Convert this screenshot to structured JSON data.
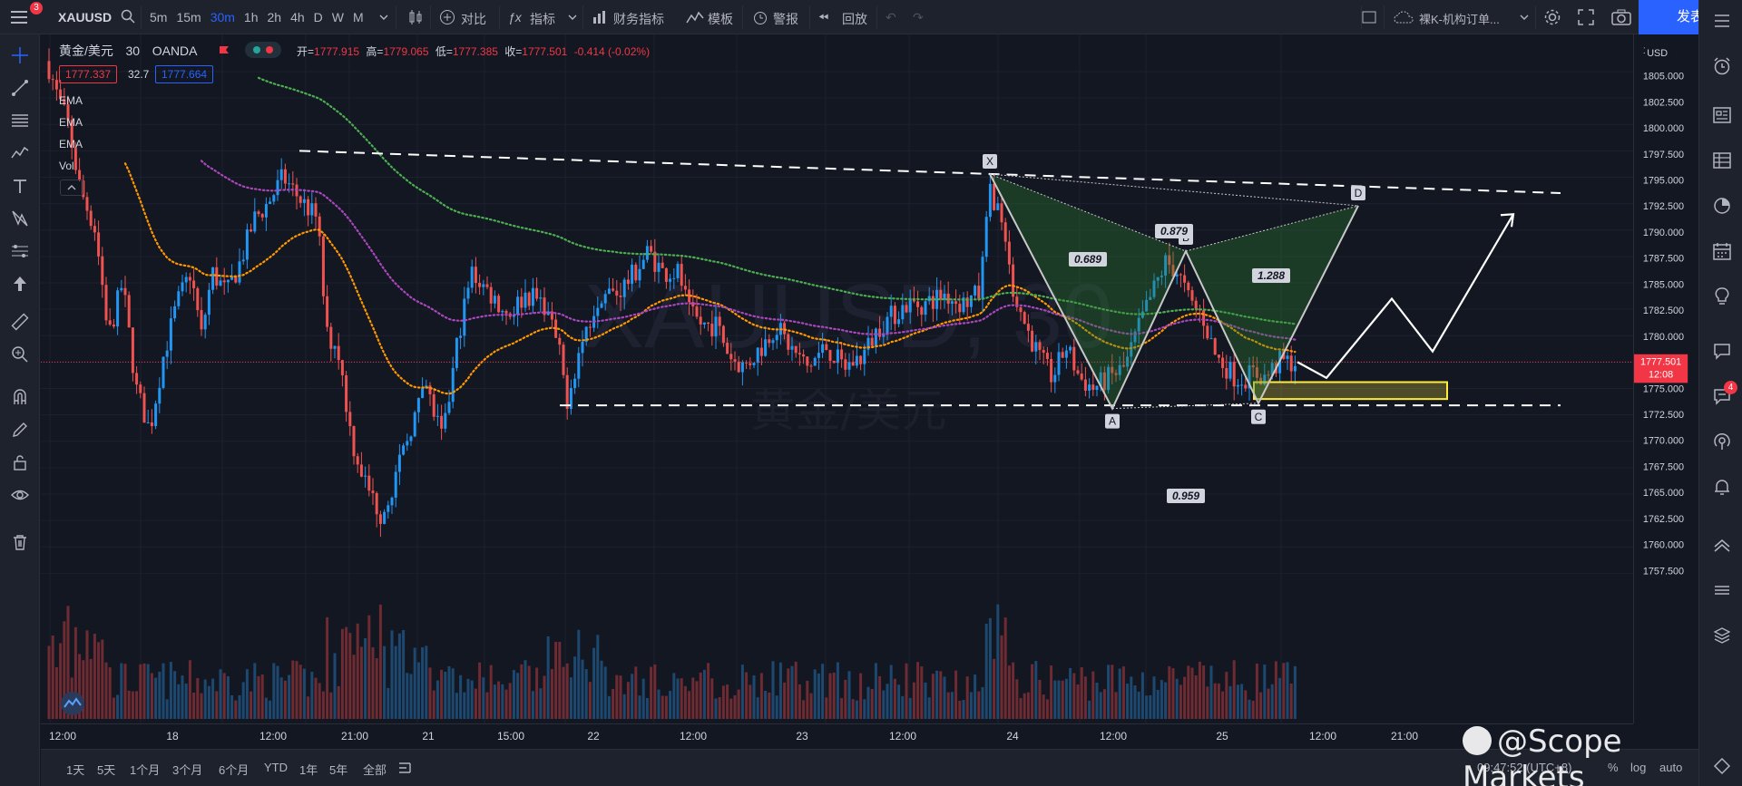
{
  "topbar": {
    "menu_badge": "3",
    "symbol": "XAUUSD",
    "intervals": [
      "5m",
      "15m",
      "30m",
      "1h",
      "2h",
      "4h",
      "D",
      "W",
      "M"
    ],
    "active_interval": "30m",
    "compare": "对比",
    "indicators": "指标",
    "financials": "财务指标",
    "templates": "模板",
    "alert": "警报",
    "replay": "回放",
    "layout_name": "裸K-机构订单...",
    "publish": "发表"
  },
  "legend": {
    "title": "黄金/美元",
    "interval": "30",
    "source": "OANDA",
    "open_label": "开=",
    "open": "1777.915",
    "high_label": "高=",
    "high": "1779.065",
    "low_label": "低=",
    "low": "1777.385",
    "close_label": "收=",
    "close": "1777.501",
    "change": "-0.414 (-0.02%)",
    "bid": "1777.337",
    "spread": "32.7",
    "ask": "1777.664",
    "indicators": [
      "EMA",
      "EMA",
      "EMA",
      "Vol"
    ]
  },
  "watermark": {
    "symbol": "XAUUSD, 30",
    "name": "黄金/美元"
  },
  "price_axis": {
    "currency": "USD",
    "ticks": [
      "1805.000",
      "1802.500",
      "1800.000",
      "1797.500",
      "1795.000",
      "1792.500",
      "1790.000",
      "1787.500",
      "1785.000",
      "1782.500",
      "1780.000",
      "1777.500",
      "1775.000",
      "1772.500",
      "1770.000",
      "1767.500",
      "1765.000",
      "1762.500",
      "1760.000",
      "1757.500"
    ],
    "current_price": "1777.501",
    "countdown": "12:08"
  },
  "time_axis": {
    "labels": [
      "12:00",
      "18",
      "12:00",
      "21:00",
      "21",
      "15:00",
      "22",
      "12:00",
      "23",
      "12:00",
      "24",
      "12:00",
      "25",
      "12:00",
      "21:00"
    ]
  },
  "pattern": {
    "points": [
      "X",
      "A",
      "B",
      "C",
      "D"
    ],
    "ratios": {
      "xb": "0.689",
      "xd": "0.879",
      "bd": "1.288",
      "ac": "0.959"
    }
  },
  "chart_data": {
    "type": "candlestick",
    "symbol": "XAUUSD",
    "interval": "30",
    "ylim": [
      1756,
      1807
    ],
    "series": [
      {
        "name": "EMA",
        "color": "#ff9800"
      },
      {
        "name": "EMA",
        "color": "#ab47bc"
      },
      {
        "name": "EMA",
        "color": "#4caf50"
      }
    ],
    "last": {
      "open": 1777.915,
      "high": 1779.065,
      "low": 1777.385,
      "close": 1777.501
    },
    "levels": {
      "resistance_from": 1797.5,
      "resistance_to": 1793.5,
      "support": 1773.4,
      "zone_low": 1774.0,
      "zone_high": 1775.6
    },
    "harmonic": {
      "X": 1795.3,
      "A": 1773.1,
      "B": 1788.0,
      "C": 1773.6,
      "D": 1792.3
    },
    "projection": [
      1777.5,
      1776.0,
      1783.5,
      1778.5,
      1791.5
    ]
  },
  "bottombar": {
    "ranges": [
      "1天",
      "5天",
      "1个月",
      "3个月",
      "6个月",
      "YTD",
      "1年",
      "5年",
      "全部"
    ],
    "clock": "09:47:52 (UTC+8)",
    "pct": "%",
    "log": "log",
    "auto": "auto",
    "logo_text": "@Scope Markets"
  },
  "colors": {
    "up": "#2196f3",
    "down": "#ef5350",
    "accent": "#2962ff"
  }
}
